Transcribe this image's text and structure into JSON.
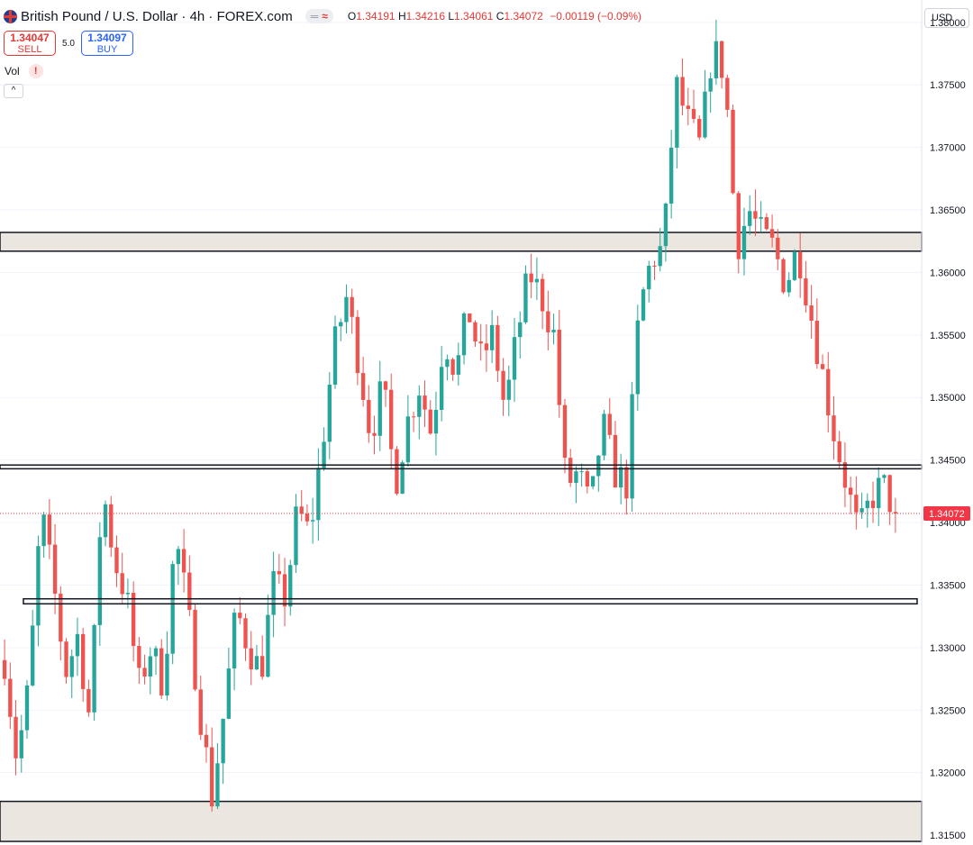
{
  "header": {
    "title": "British Pound / U.S. Dollar · 4h · FOREX.com",
    "icon_a": "═",
    "icon_b": "≈",
    "open_label": "O",
    "open": "1.34191",
    "high_label": "H",
    "high": "1.34216",
    "low_label": "L",
    "low": "1.34061",
    "close_label": "C",
    "close": "1.34072",
    "change": "−0.00119 (−0.09%)"
  },
  "trade": {
    "sell_price": "1.34047",
    "sell_label": "SELL",
    "spread": "5.0",
    "buy_price": "1.34097",
    "buy_label": "BUY"
  },
  "indicator": {
    "name": "Vol",
    "warning": "!"
  },
  "collapse_icon": "^",
  "currency": "USD",
  "colors": {
    "up": "#26a69a",
    "down": "#ef5350",
    "zone": "#ebe6e0",
    "line": "#131722",
    "price": "#f23645"
  },
  "chart_data": {
    "type": "candlestick",
    "title": "British Pound / U.S. Dollar · 4h · FOREX.com",
    "ylim": [
      1.3145,
      1.3815
    ],
    "yticks": [
      1.315,
      1.32,
      1.325,
      1.33,
      1.335,
      1.34,
      1.345,
      1.35,
      1.355,
      1.36,
      1.365,
      1.37,
      1.375,
      1.38
    ],
    "ytick_labels": [
      "1.31500",
      "1.32000",
      "1.32500",
      "1.33000",
      "1.33500",
      "1.34000",
      "1.34500",
      "1.35000",
      "1.35500",
      "1.36000",
      "1.36500",
      "1.37000",
      "1.37500",
      "1.38000"
    ],
    "last_price": 1.34072,
    "last_price_label": "1.34072",
    "zones": [
      {
        "from": 1.3617,
        "to": 1.3632
      },
      {
        "from": 1.3145,
        "to": 1.3177
      }
    ],
    "levels": [
      {
        "from": 1.3443,
        "to": 1.3446
      },
      {
        "from": 1.3335,
        "to": 1.3339
      }
    ],
    "path": [
      1.329,
      1.321,
      1.327,
      1.341,
      1.335,
      1.328,
      1.331,
      1.324,
      1.343,
      1.337,
      1.334,
      1.327,
      1.33,
      1.327,
      1.339,
      1.333,
      1.325,
      1.318,
      1.325,
      1.333,
      1.33,
      1.328,
      1.335,
      1.334,
      1.341,
      1.339,
      1.346,
      1.354,
      1.358,
      1.353,
      1.347,
      1.351,
      1.343,
      1.348,
      1.351,
      1.347,
      1.355,
      1.352,
      1.357,
      1.353,
      1.355,
      1.349,
      1.355,
      1.36,
      1.358,
      1.355,
      1.343,
      1.344,
      1.341,
      1.348,
      1.344,
      1.343,
      1.357,
      1.361,
      1.362,
      1.375,
      1.372,
      1.37,
      1.378,
      1.376,
      1.362,
      1.365,
      1.363,
      1.362,
      1.359,
      1.362,
      1.357,
      1.352,
      1.347,
      1.343,
      1.339,
      1.342,
      1.343,
      1.3407
    ],
    "candle_count": 160
  }
}
